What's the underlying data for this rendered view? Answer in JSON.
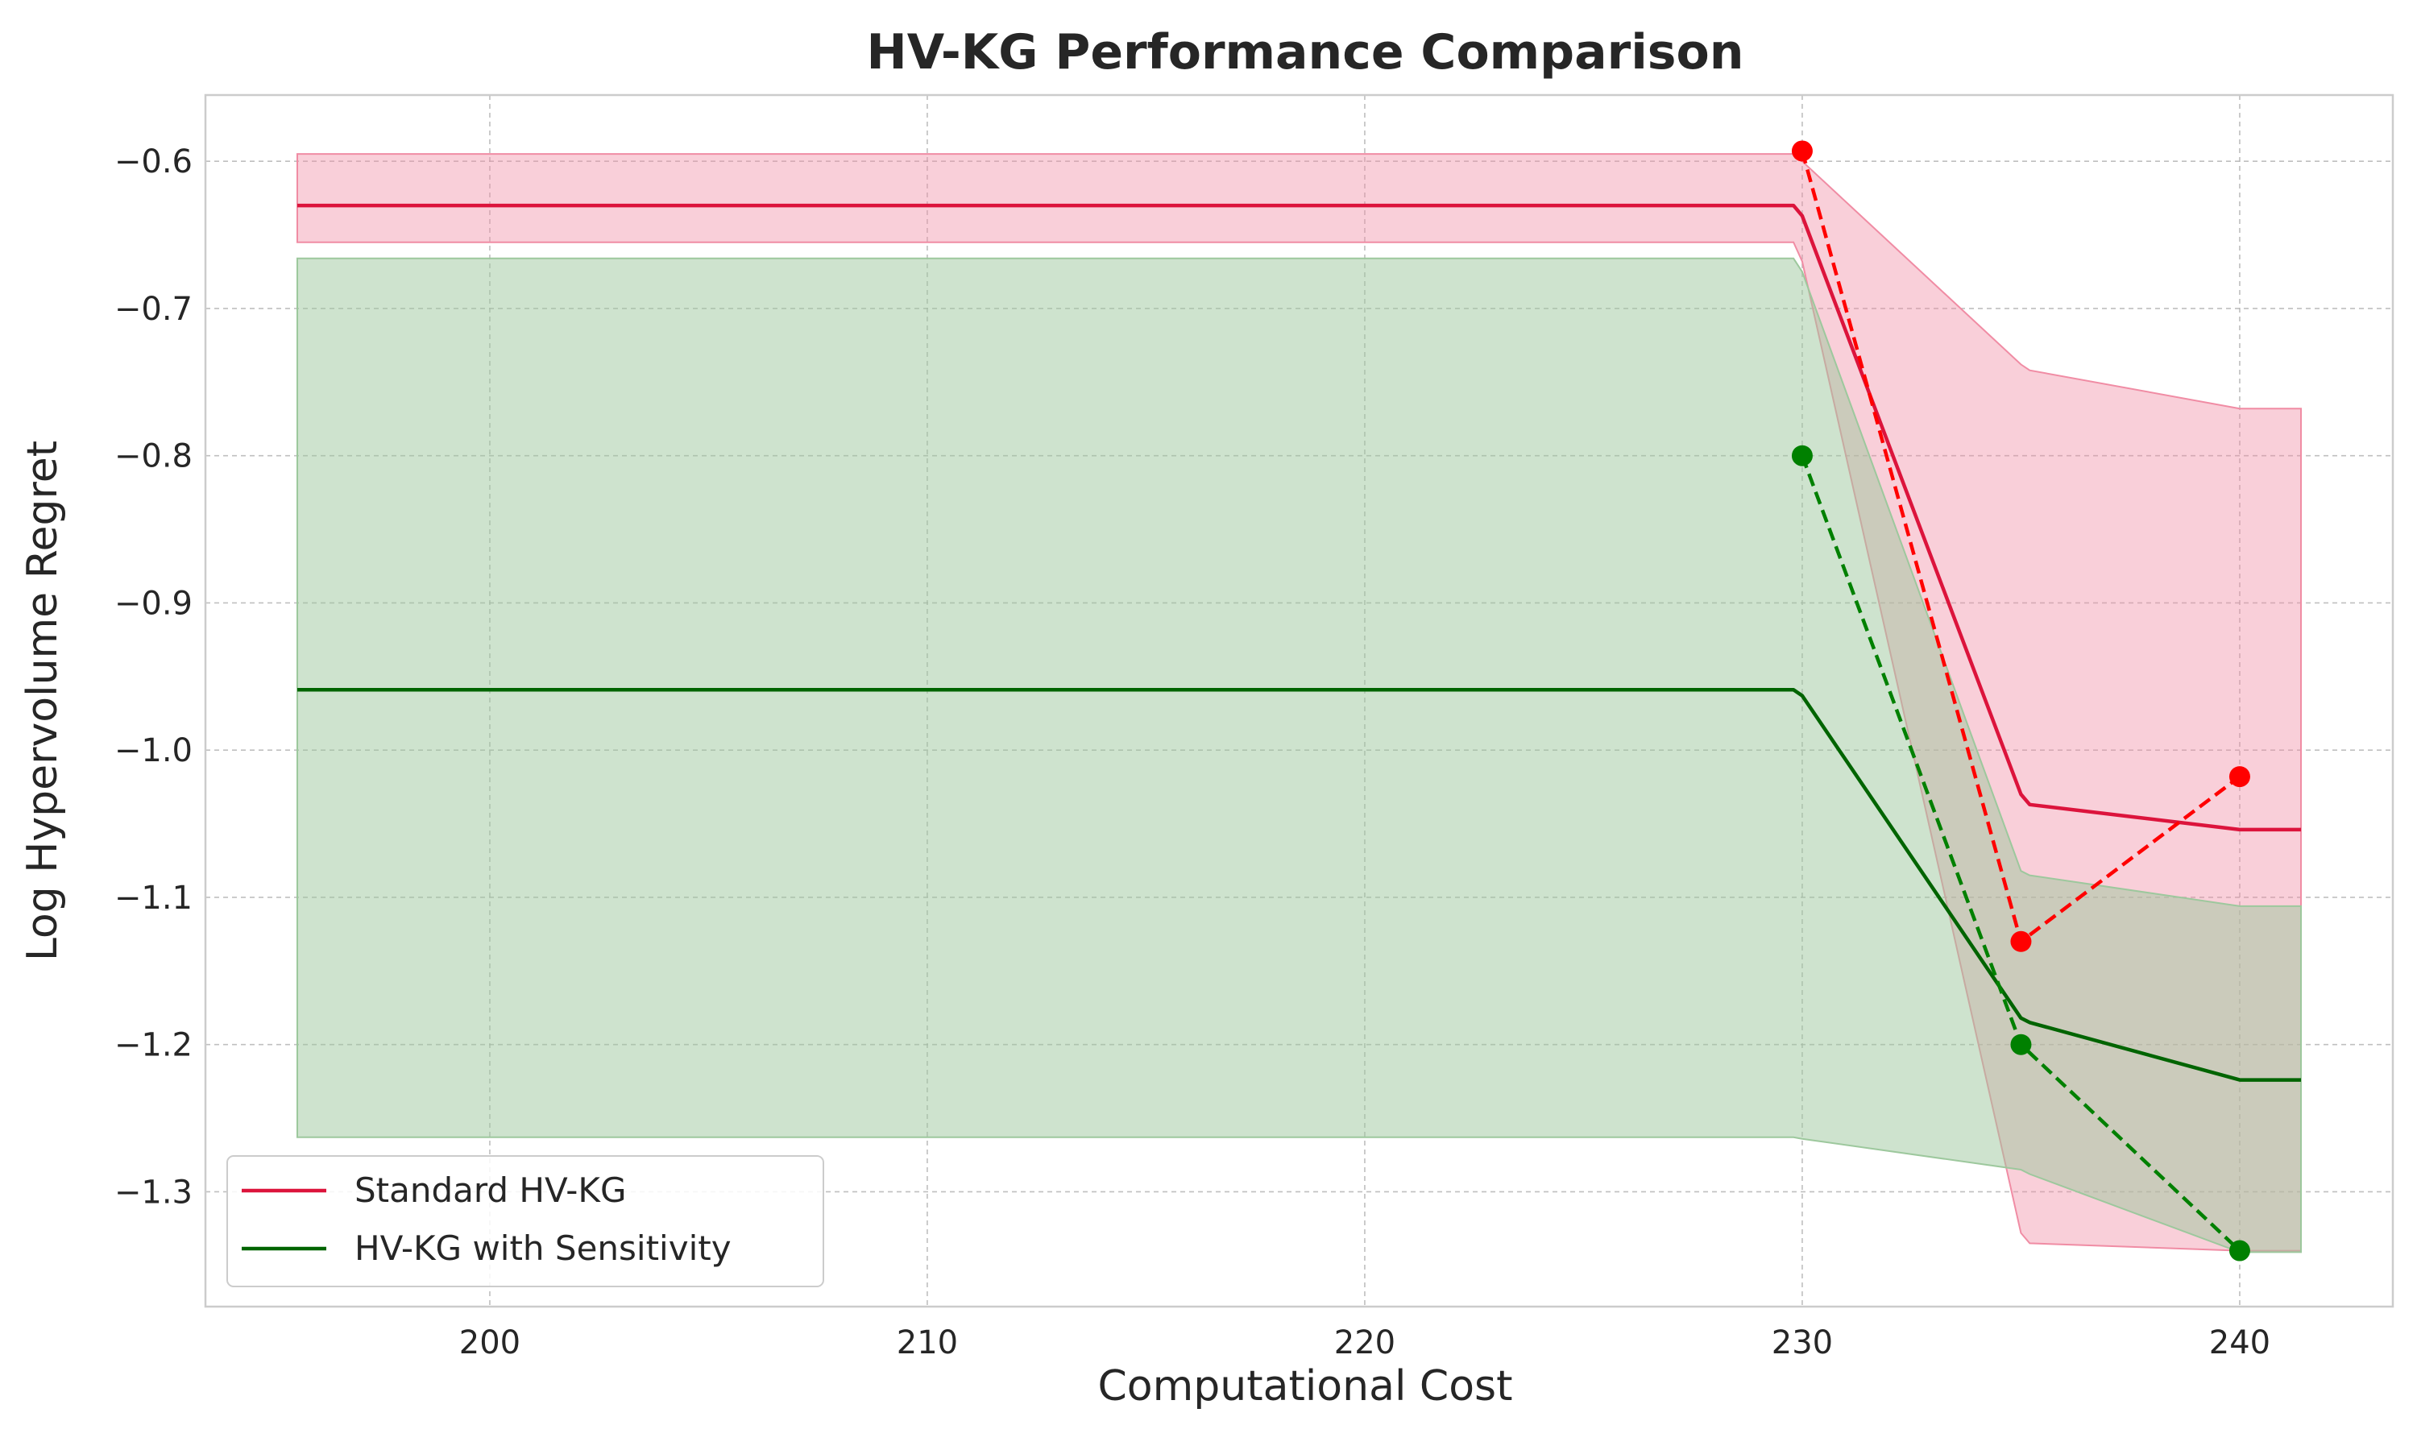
{
  "chart_data": {
    "type": "line",
    "title": "HV-KG Performance Comparison",
    "xlabel": "Computational Cost",
    "ylabel": "Log Hypervolume Regret",
    "xlim": [
      193.5,
      243.5
    ],
    "ylim": [
      -1.378,
      -0.555
    ],
    "xticks": [
      200,
      210,
      220,
      230,
      240
    ],
    "xtick_labels": [
      "200",
      "210",
      "220",
      "230",
      "240"
    ],
    "yticks": [
      -0.6,
      -0.7,
      -0.8,
      -0.9,
      -1.0,
      -1.1,
      -1.2,
      -1.3
    ],
    "ytick_labels": [
      "−0.6",
      "−0.7",
      "−0.8",
      "−0.9",
      "−1.0",
      "−1.1",
      "−1.2",
      "−1.3"
    ],
    "grid": true,
    "legend_position": "lower-left",
    "series": [
      {
        "name": "Standard HV-KG",
        "color": "#dc143c",
        "marker_color": "#ff0000",
        "fill_color": "#f08ca4",
        "x": [
          195.6,
          229.8,
          230.0,
          235.0,
          235.2,
          240.0,
          241.4
        ],
        "mean": [
          -0.63,
          -0.63,
          -0.637,
          -1.03,
          -1.037,
          -1.054,
          -1.054
        ],
        "upper": [
          -0.595,
          -0.595,
          -0.6,
          -0.738,
          -0.742,
          -0.768,
          -0.768
        ],
        "lower": [
          -0.655,
          -0.655,
          -0.668,
          -1.328,
          -1.335,
          -1.34,
          -1.34
        ],
        "points_x": [
          230,
          235,
          240
        ],
        "points_y": [
          -0.593,
          -1.13,
          -1.018
        ]
      },
      {
        "name": "HV-KG with Sensitivity",
        "color": "#006400",
        "marker_color": "#008000",
        "fill_color": "#9dc89d",
        "x": [
          195.6,
          229.8,
          230.0,
          235.0,
          235.2,
          240.0,
          241.4
        ],
        "mean": [
          -0.959,
          -0.959,
          -0.963,
          -1.182,
          -1.185,
          -1.224,
          -1.224
        ],
        "upper": [
          -0.666,
          -0.666,
          -0.675,
          -1.082,
          -1.085,
          -1.106,
          -1.106
        ],
        "lower": [
          -1.263,
          -1.263,
          -1.264,
          -1.285,
          -1.288,
          -1.341,
          -1.341
        ],
        "points_x": [
          230,
          235,
          240
        ],
        "points_y": [
          -0.8,
          -1.2,
          -1.34
        ]
      }
    ]
  }
}
